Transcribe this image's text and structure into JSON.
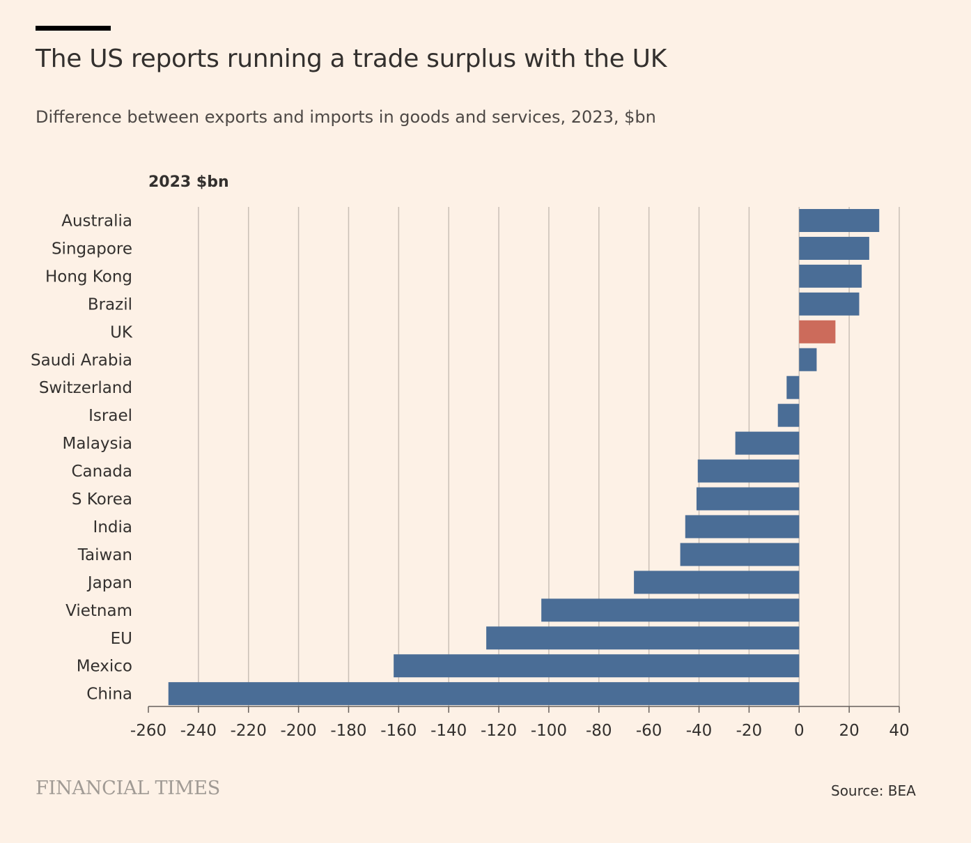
{
  "header": {
    "title": "The US reports running a trade surplus with the UK",
    "subtitle": "Difference between exports and imports in goods and services, 2023, $bn"
  },
  "footer": {
    "brand": "FINANCIAL TIMES",
    "source": "Source: BEA"
  },
  "colors": {
    "background": "#fdf1e6",
    "bar_default": "#4a6d96",
    "bar_highlight": "#cc6b5b",
    "gridline": "#c9bfb6",
    "axis": "#66605c",
    "text": "#33302e"
  },
  "chart_data": {
    "type": "bar",
    "orientation": "horizontal",
    "unit_label": "2023 $bn",
    "xlim": [
      -260,
      40
    ],
    "ticks": [
      -260,
      -240,
      -220,
      -200,
      -180,
      -160,
      -140,
      -120,
      -100,
      -80,
      -60,
      -40,
      -20,
      0,
      20,
      40
    ],
    "highlight": "UK",
    "categories": [
      "Australia",
      "Singapore",
      "Hong Kong",
      "Brazil",
      "UK",
      "Saudi Arabia",
      "Switzerland",
      "Israel",
      "Malaysia",
      "Canada",
      "S Korea",
      "India",
      "Taiwan",
      "Japan",
      "Vietnam",
      "EU",
      "Mexico",
      "China"
    ],
    "values": [
      32,
      28,
      25,
      24,
      14.5,
      7,
      -5,
      -8.5,
      -25.5,
      -40.5,
      -41,
      -45.5,
      -47.5,
      -66,
      -103,
      -125,
      -162,
      -252
    ]
  }
}
